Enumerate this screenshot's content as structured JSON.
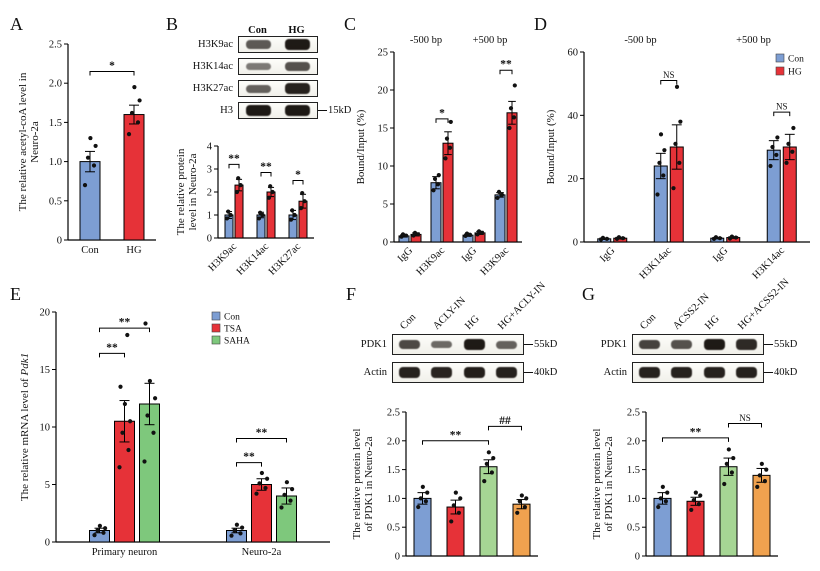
{
  "panels": {
    "A": {
      "label": "A"
    },
    "B": {
      "label": "B"
    },
    "C": {
      "label": "C"
    },
    "D": {
      "label": "D"
    },
    "E": {
      "label": "E"
    },
    "F": {
      "label": "F"
    },
    "G": {
      "label": "G"
    }
  },
  "colors": {
    "con_blue": "#7d9ed3",
    "hg_red": "#e63238",
    "saha_green": "#7ec87c",
    "hg_light_green": "#a6d694",
    "combo_orange": "#f0a24f"
  },
  "blots": {
    "B": {
      "lane_labels": [
        "Con",
        "HG"
      ],
      "rows": [
        {
          "label": "H3K9ac",
          "bands": [
            0.55,
            0.95
          ]
        },
        {
          "label": "H3K14ac",
          "bands": [
            0.35,
            0.6
          ]
        },
        {
          "label": "H3K27ac",
          "bands": [
            0.5,
            0.9
          ]
        },
        {
          "label": "H3",
          "bands": [
            0.95,
            0.95
          ],
          "marker": "15kD"
        }
      ]
    },
    "F": {
      "lane_labels": [
        "Con",
        "ACLY-IN",
        "HG",
        "HG+ACLY-IN"
      ],
      "rows": [
        {
          "label": "PDK1",
          "bands": [
            0.65,
            0.45,
            0.95,
            0.5
          ],
          "marker": "55kD"
        },
        {
          "label": "Actin",
          "bands": [
            0.9,
            0.88,
            0.92,
            0.9
          ],
          "marker": "40kD"
        }
      ]
    },
    "G": {
      "lane_labels": [
        "Con",
        "ACSS2-IN",
        "HG",
        "HG+ACSS2-IN"
      ],
      "rows": [
        {
          "label": "PDK1",
          "bands": [
            0.7,
            0.6,
            0.95,
            0.85
          ],
          "marker": "55kD"
        },
        {
          "label": "Actin",
          "bands": [
            0.9,
            0.9,
            0.9,
            0.9
          ],
          "marker": "40kD"
        }
      ]
    }
  },
  "chart_data": [
    {
      "panel": "A",
      "type": "bar",
      "ylabel": "The relative acetyl-coA level in\nNeuro-2a",
      "ylim": [
        0,
        2.5
      ],
      "yticks": [
        0,
        0.5,
        1,
        1.5,
        2,
        2.5
      ],
      "ydec": 1,
      "categories": [
        "Con",
        "HG"
      ],
      "bar_colors": [
        "#7d9ed3",
        "#e63238"
      ],
      "series": [
        {
          "name": "",
          "color": "#7d9ed3"
        }
      ],
      "values": [
        [
          1.0,
          1.6
        ]
      ],
      "errors": [
        [
          0.13,
          0.12
        ]
      ],
      "points": [
        [
          [
            0.7,
            0.95,
            1.05,
            1.2,
            1.3
          ],
          [
            1.35,
            1.5,
            1.62,
            1.78,
            1.95
          ]
        ]
      ],
      "sig": [
        {
          "a": [
            0,
            0
          ],
          "b": [
            1,
            0
          ],
          "y": 2.15,
          "label": "*"
        }
      ]
    },
    {
      "panel": "B",
      "type": "bar",
      "ylabel": "The relative protein\nlevel in Neuro-2a",
      "ylim": [
        0,
        4
      ],
      "yticks": [
        0,
        1,
        2,
        3,
        4
      ],
      "categories": [
        "H3K9ac",
        "H3K14ac",
        "H3K27ac"
      ],
      "xrot": 45,
      "series": [
        {
          "name": "Con",
          "color": "#7d9ed3"
        },
        {
          "name": "HG",
          "color": "#e63238"
        }
      ],
      "values": [
        [
          1.0,
          1.0,
          1.0
        ],
        [
          2.3,
          2.0,
          1.6
        ]
      ],
      "errors": [
        [
          0.15,
          0.12,
          0.2
        ],
        [
          0.25,
          0.2,
          0.3
        ]
      ],
      "points": [
        [
          [
            0.85,
            1.0,
            1.15
          ],
          [
            0.85,
            1.0,
            1.1
          ],
          [
            0.8,
            1.0,
            1.2
          ]
        ],
        [
          [
            2.0,
            2.3,
            2.6
          ],
          [
            1.75,
            2.0,
            2.25
          ],
          [
            1.3,
            1.6,
            1.95
          ]
        ]
      ],
      "sig": [
        {
          "a": [
            0,
            0
          ],
          "b": [
            0,
            1
          ],
          "y": 3.2,
          "label": "**"
        },
        {
          "a": [
            1,
            0
          ],
          "b": [
            1,
            1
          ],
          "y": 2.85,
          "label": "**"
        },
        {
          "a": [
            2,
            0
          ],
          "b": [
            2,
            1
          ],
          "y": 2.5,
          "label": "*"
        }
      ]
    },
    {
      "panel": "C",
      "type": "bar",
      "ylabel": "Bound/Input (%)",
      "ylim": [
        0,
        25
      ],
      "yticks": [
        0,
        5,
        10,
        15,
        20,
        25
      ],
      "categories": [
        "IgG",
        "H3K9ac",
        "IgG",
        "H3K9ac"
      ],
      "xrot": 45,
      "group_labels": [
        {
          "label": "-500 bp",
          "from": 0,
          "to": 1
        },
        {
          "label": "+500 bp",
          "from": 2,
          "to": 3
        }
      ],
      "series": [
        {
          "name": "Con",
          "color": "#7d9ed3"
        },
        {
          "name": "HG",
          "color": "#e63238"
        }
      ],
      "values": [
        [
          0.8,
          7.8,
          0.9,
          6.2
        ],
        [
          1.0,
          13.0,
          1.2,
          17.0
        ]
      ],
      "errors": [
        [
          0.15,
          0.8,
          0.15,
          0.3
        ],
        [
          0.2,
          1.5,
          0.2,
          1.5
        ]
      ],
      "points": [
        [
          [
            0.7,
            0.85,
            1.0
          ],
          [
            6.8,
            7.6,
            8.3,
            8.8
          ],
          [
            0.8,
            0.95,
            1.1
          ],
          [
            5.8,
            6.2,
            6.6
          ]
        ],
        [
          [
            0.85,
            1.0,
            1.2
          ],
          [
            11.0,
            12.4,
            13.6,
            15.8
          ],
          [
            1.0,
            1.2,
            1.4
          ],
          [
            15.0,
            16.4,
            17.6,
            20.6
          ]
        ]
      ],
      "sig": [
        {
          "a": [
            1,
            0
          ],
          "b": [
            1,
            1
          ],
          "y": 16.2,
          "label": "*"
        },
        {
          "a": [
            3,
            0
          ],
          "b": [
            3,
            1
          ],
          "y": 22.6,
          "label": "**"
        }
      ]
    },
    {
      "panel": "D",
      "type": "bar",
      "ylabel": "Bound/Input (%)",
      "ylim": [
        0,
        60
      ],
      "yticks": [
        0,
        20,
        40,
        60
      ],
      "categories": [
        "IgG",
        "H3K14ac",
        "IgG",
        "H3K14ac"
      ],
      "xrot": 45,
      "group_labels": [
        {
          "label": "-500 bp",
          "from": 0,
          "to": 1
        },
        {
          "label": "+500 bp",
          "from": 2,
          "to": 3
        }
      ],
      "series": [
        {
          "name": "Con",
          "color": "#7d9ed3"
        },
        {
          "name": "HG",
          "color": "#e63238"
        }
      ],
      "values": [
        [
          1.0,
          24.0,
          1.2,
          29.0
        ],
        [
          1.2,
          30.0,
          1.4,
          30.0
        ]
      ],
      "errors": [
        [
          0.2,
          4.0,
          0.2,
          3.0
        ],
        [
          0.25,
          7.0,
          0.25,
          4.0
        ]
      ],
      "points": [
        [
          [
            0.8,
            1.0,
            1.3
          ],
          [
            15,
            21,
            25,
            29,
            34
          ],
          [
            1.0,
            1.2,
            1.5
          ],
          [
            24,
            27.5,
            30,
            33
          ]
        ],
        [
          [
            1.0,
            1.2,
            1.5
          ],
          [
            17,
            25,
            31,
            38,
            49
          ],
          [
            1.1,
            1.4,
            1.7
          ],
          [
            25,
            28.5,
            31,
            36
          ]
        ]
      ],
      "sig": [
        {
          "a": [
            1,
            0
          ],
          "b": [
            1,
            1
          ],
          "y": 51,
          "label": "NS"
        },
        {
          "a": [
            3,
            0
          ],
          "b": [
            3,
            1
          ],
          "y": 41,
          "label": "NS"
        }
      ],
      "legend": {
        "items": [
          "Con",
          "HG"
        ]
      }
    },
    {
      "panel": "E",
      "type": "bar",
      "ylabel_rich": [
        {
          "t": "The relative mRNA level of "
        },
        {
          "t": "Pdk1",
          "i": true
        }
      ],
      "ylim": [
        0,
        20
      ],
      "yticks": [
        0,
        5,
        10,
        15,
        20
      ],
      "categories": [
        "Primary neuron",
        "Neuro-2a"
      ],
      "series": [
        {
          "name": "Con",
          "color": "#7d9ed3"
        },
        {
          "name": "TSA",
          "color": "#e63238"
        },
        {
          "name": "SAHA",
          "color": "#7ec87c"
        }
      ],
      "values": [
        [
          1.0,
          1.0
        ],
        [
          10.5,
          5.0
        ],
        [
          12.0,
          4.0
        ]
      ],
      "errors": [
        [
          0.2,
          0.2
        ],
        [
          1.8,
          0.5
        ],
        [
          1.8,
          0.7
        ]
      ],
      "points": [
        [
          [
            0.6,
            0.8,
            1.0,
            1.2,
            1.4
          ],
          [
            0.55,
            0.75,
            1.0,
            1.25,
            1.5
          ]
        ],
        [
          [
            6.5,
            8.0,
            9.5,
            10.5,
            12.0,
            13.5,
            18.0
          ],
          [
            4.2,
            4.7,
            5.1,
            5.5,
            6.0
          ]
        ],
        [
          [
            7.0,
            9.5,
            11.0,
            12.5,
            14.0,
            19.0
          ],
          [
            3.0,
            3.6,
            4.1,
            4.6,
            5.2
          ]
        ]
      ],
      "sig": [
        {
          "a": [
            0,
            0
          ],
          "b": [
            0,
            1
          ],
          "y": 16.4,
          "label": "**"
        },
        {
          "a": [
            0,
            0
          ],
          "b": [
            0,
            2
          ],
          "y": 18.6,
          "label": "**"
        },
        {
          "a": [
            1,
            0
          ],
          "b": [
            1,
            1
          ],
          "y": 6.9,
          "label": "**"
        },
        {
          "a": [
            1,
            0
          ],
          "b": [
            1,
            2
          ],
          "y": 9.0,
          "label": "**"
        }
      ],
      "legend": {
        "items": [
          "Con",
          "TSA",
          "SAHA"
        ]
      }
    },
    {
      "panel": "F",
      "type": "bar",
      "ylabel": "The relative protein level\nof PDK1 in Neuro-2a",
      "ylim": [
        0,
        2.5
      ],
      "yticks": [
        0,
        0.5,
        1,
        1.5,
        2,
        2.5
      ],
      "ydec": 1,
      "categories": [
        "Con",
        "ACLY-IN",
        "HG",
        "HG+ACLY-IN"
      ],
      "hide_xlabels": true,
      "bar_colors": [
        "#7d9ed3",
        "#e63238",
        "#a6d694",
        "#f0a24f"
      ],
      "series": [
        {
          "name": "",
          "color": "#7d9ed3"
        }
      ],
      "values": [
        [
          1.0,
          0.85,
          1.55,
          0.9
        ]
      ],
      "errors": [
        [
          0.1,
          0.12,
          0.12,
          0.08
        ]
      ],
      "points": [
        [
          [
            0.85,
            0.95,
            1.0,
            1.1,
            1.2
          ],
          [
            0.6,
            0.75,
            0.88,
            1.0,
            1.1
          ],
          [
            1.3,
            1.45,
            1.6,
            1.7,
            1.8
          ],
          [
            0.75,
            0.85,
            0.95,
            1.0,
            1.05
          ]
        ]
      ],
      "sig": [
        {
          "a": [
            0,
            0
          ],
          "b": [
            2,
            0
          ],
          "y": 2.0,
          "label": "**"
        },
        {
          "a": [
            2,
            0
          ],
          "b": [
            3,
            0
          ],
          "y": 2.25,
          "label": "##"
        }
      ]
    },
    {
      "panel": "G",
      "type": "bar",
      "ylabel": "The relative protein level\nof PDK1 in Neuro-2a",
      "ylim": [
        0,
        2.5
      ],
      "yticks": [
        0,
        0.5,
        1,
        1.5,
        2,
        2.5
      ],
      "ydec": 1,
      "categories": [
        "Con",
        "ACSS2-IN",
        "HG",
        "HG+ACSS2-IN"
      ],
      "hide_xlabels": true,
      "bar_colors": [
        "#7d9ed3",
        "#e63238",
        "#a6d694",
        "#f0a24f"
      ],
      "series": [
        {
          "name": "",
          "color": "#7d9ed3"
        }
      ],
      "values": [
        [
          1.0,
          0.95,
          1.55,
          1.4
        ]
      ],
      "errors": [
        [
          0.1,
          0.07,
          0.15,
          0.12
        ]
      ],
      "points": [
        [
          [
            0.85,
            0.95,
            1.0,
            1.1,
            1.2
          ],
          [
            0.8,
            0.9,
            0.97,
            1.05,
            1.1
          ],
          [
            1.25,
            1.45,
            1.6,
            1.7,
            1.85
          ],
          [
            1.2,
            1.3,
            1.4,
            1.5,
            1.6
          ]
        ]
      ],
      "sig": [
        {
          "a": [
            0,
            0
          ],
          "b": [
            2,
            0
          ],
          "y": 2.05,
          "label": "**"
        },
        {
          "a": [
            2,
            0
          ],
          "b": [
            3,
            0
          ],
          "y": 2.3,
          "label": "NS"
        }
      ]
    }
  ]
}
